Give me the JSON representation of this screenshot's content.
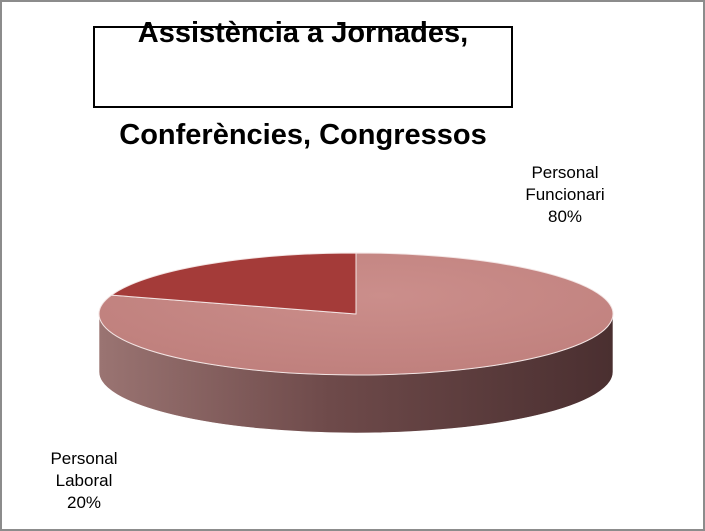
{
  "chart_data": {
    "type": "pie",
    "title_lines": [
      "Assistència a Jornades,",
      "Conferències, Congressos"
    ],
    "slices": [
      {
        "label_lines": [
          "Personal",
          "Funcionari"
        ],
        "value": 80,
        "value_label": "80%",
        "color": "#c48582",
        "side_color": "#5e3838"
      },
      {
        "label_lines": [
          "Personal",
          "Laboral"
        ],
        "value": 20,
        "value_label": "20%",
        "color": "#a43b39",
        "side_color": "#7a2a28"
      }
    ],
    "legend": "none",
    "style": "3d"
  }
}
